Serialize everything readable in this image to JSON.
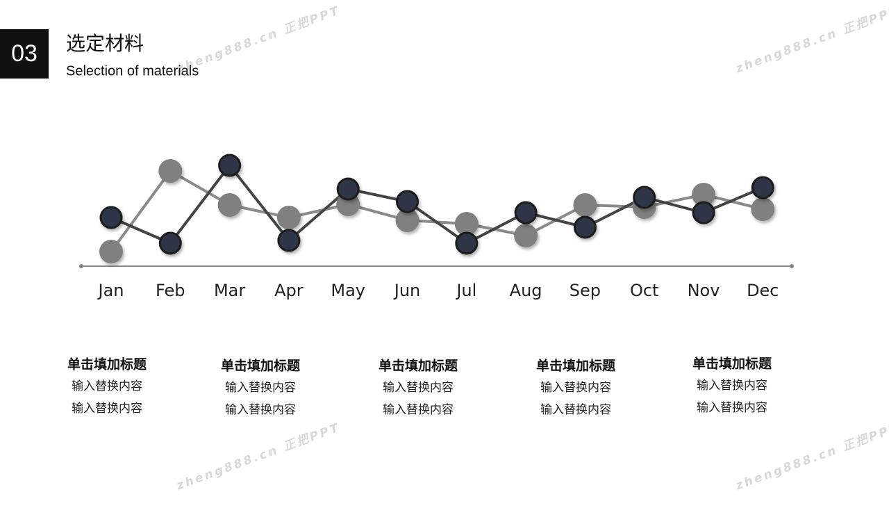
{
  "header": {
    "number": "03",
    "title": "选定材料",
    "subtitle": "Selection of materials"
  },
  "watermark": "zheng888.cn 正把PPT",
  "chart_data": {
    "type": "line",
    "categories": [
      "Jan",
      "Feb",
      "Mar",
      "Apr",
      "May",
      "Jun",
      "Jul",
      "Aug",
      "Sep",
      "Oct",
      "Nov",
      "Dec"
    ],
    "ylim": [
      0,
      10
    ],
    "series": [
      {
        "color": "#808080",
        "values": [
          1.05,
          6.85,
          4.4,
          3.5,
          4.45,
          3.3,
          3.05,
          2.2,
          4.4,
          4.25,
          5.15,
          4.1
        ]
      },
      {
        "color": "#2d3447",
        "values": [
          3.5,
          1.65,
          7.25,
          1.85,
          5.55,
          4.65,
          1.65,
          3.85,
          2.8,
          4.95,
          3.85,
          5.65
        ]
      }
    ]
  },
  "blocks": [
    {
      "title": "单击填加标题",
      "lines": [
        "输入替换内容",
        "输入替换内容"
      ]
    },
    {
      "title": "单击填加标题",
      "lines": [
        "输入替换内容",
        "输入替换内容"
      ]
    },
    {
      "title": "单击填加标题",
      "lines": [
        "输入替换内容",
        "输入替换内容"
      ]
    },
    {
      "title": "单击填加标题",
      "lines": [
        "输入替换内容",
        "输入替换内容"
      ]
    },
    {
      "title": "单击填加标题",
      "lines": [
        "输入替换内容",
        "输入替换内容"
      ]
    }
  ]
}
